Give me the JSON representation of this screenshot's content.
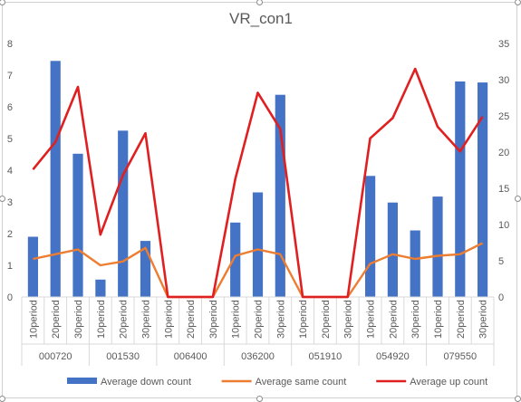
{
  "chart_data": {
    "type": "bar",
    "title": "VR_con1",
    "groups": [
      "000720",
      "001530",
      "006400",
      "036200",
      "051910",
      "054920",
      "079550"
    ],
    "periods": [
      "10period",
      "20period",
      "30period"
    ],
    "y_left": {
      "min": 0,
      "max": 8,
      "ticks": [
        0,
        1,
        2,
        3,
        4,
        5,
        6,
        7,
        8
      ]
    },
    "y_right": {
      "min": 0,
      "max": 35,
      "ticks": [
        0,
        5,
        10,
        15,
        20,
        25,
        30,
        35
      ]
    },
    "series": [
      {
        "name": "Average down count",
        "type": "bar",
        "axis": "left",
        "color": "#4472c4",
        "values": [
          1.9,
          7.45,
          4.52,
          0.55,
          5.25,
          1.77,
          0,
          0,
          0,
          2.35,
          3.3,
          6.38,
          0,
          0,
          0,
          3.82,
          2.98,
          2.1,
          3.17,
          6.8,
          6.77
        ]
      },
      {
        "name": "Average same count",
        "type": "line",
        "axis": "left",
        "color": "#ed7d31",
        "values": [
          1.2,
          1.35,
          1.5,
          1.0,
          1.12,
          1.55,
          0,
          0,
          0,
          1.3,
          1.5,
          1.35,
          0,
          0,
          0,
          1.05,
          1.35,
          1.2,
          1.3,
          1.35,
          1.7
        ]
      },
      {
        "name": "Average up count",
        "type": "line",
        "axis": "right",
        "color": "#e02020",
        "values": [
          17.6,
          21.4,
          29.0,
          8.6,
          16.8,
          22.6,
          0,
          0,
          0,
          16.3,
          28.2,
          23.2,
          0,
          0,
          0,
          21.9,
          24.7,
          31.5,
          23.5,
          20.1,
          24.9
        ]
      }
    ],
    "legend_position": "bottom",
    "grid": false
  }
}
